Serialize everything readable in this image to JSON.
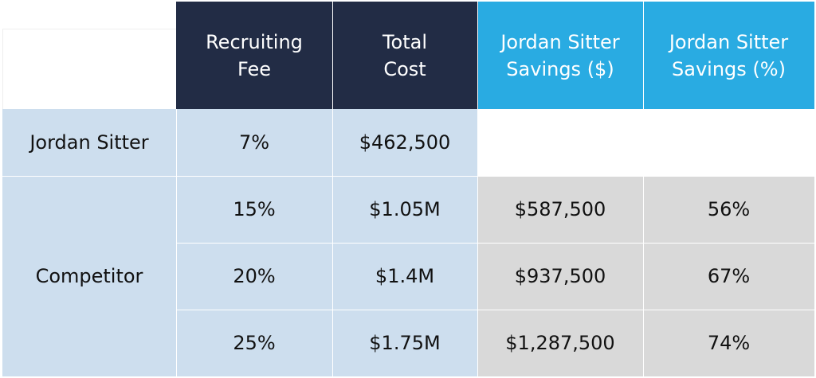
{
  "headers": {
    "recruiting_fee": "Recruiting Fee",
    "total_cost": "Total Cost",
    "savings_dollars": "Jordan Sitter Savings ($)",
    "savings_percent": "Jordan Sitter Savings (%)"
  },
  "rows": {
    "jordan": {
      "label": "Jordan Sitter",
      "fee": "7%",
      "cost": "$462,500"
    },
    "competitor": {
      "label": "Competitor",
      "items": [
        {
          "fee": "15%",
          "cost": "$1.05M",
          "savings_dollars": "$587,500",
          "savings_percent": "56%"
        },
        {
          "fee": "20%",
          "cost": "$1.4M",
          "savings_dollars": "$937,500",
          "savings_percent": "67%"
        },
        {
          "fee": "25%",
          "cost": "$1.75M",
          "savings_dollars": "$1,287,500",
          "savings_percent": "74%"
        }
      ]
    }
  },
  "colors": {
    "header_dark": "#222c45",
    "header_accent": "#29abe2",
    "row_light_blue": "#cddeee",
    "savings_grey": "#d9d9d9"
  }
}
